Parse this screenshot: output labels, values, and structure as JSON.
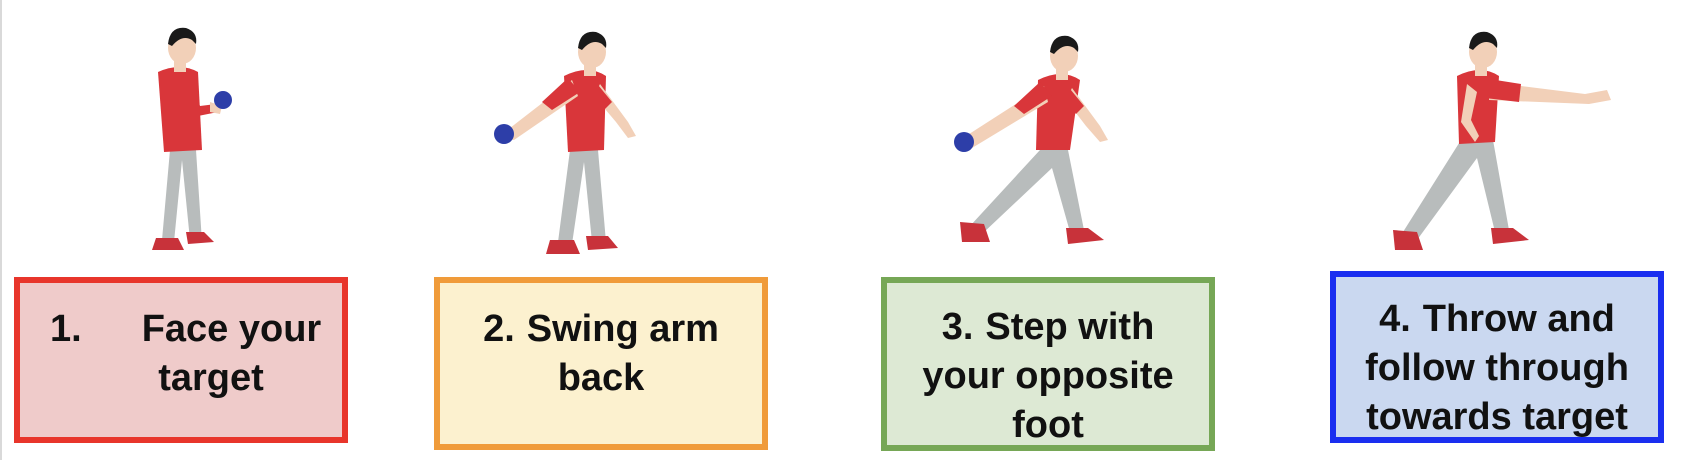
{
  "steps": [
    {
      "number": "1.",
      "text_line1": "Face your",
      "text_line2": "target",
      "text_line3": "",
      "color": "#e8352b",
      "fill": "#efcbca"
    },
    {
      "number": "2.",
      "text_line1": "Swing arm",
      "text_line2": "back",
      "text_line3": "",
      "color": "#f09b3a",
      "fill": "#fcf1cf"
    },
    {
      "number": "3.",
      "text_line1": "Step with",
      "text_line2": "your opposite",
      "text_line3": "foot",
      "color": "#76a756",
      "fill": "#dde9d4"
    },
    {
      "number": "4.",
      "text_line1": "Throw and",
      "text_line2": "follow through",
      "text_line3": "towards target",
      "color": "#1a2ef0",
      "fill": "#cad8f0"
    }
  ],
  "colors": {
    "shirt": "#d9363a",
    "pants": "#b8bcbc",
    "shoes": "#c8323a",
    "skin": "#f2d0b8",
    "hair": "#1a1a1a",
    "ball": "#2d3ea8"
  }
}
